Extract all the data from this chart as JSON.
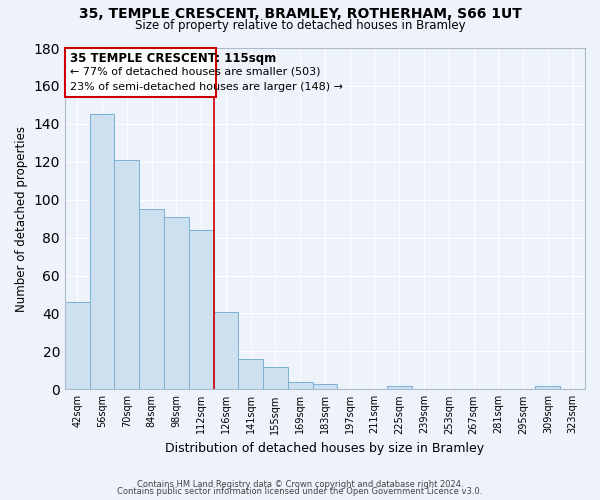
{
  "title1": "35, TEMPLE CRESCENT, BRAMLEY, ROTHERHAM, S66 1UT",
  "title2": "Size of property relative to detached houses in Bramley",
  "xlabel": "Distribution of detached houses by size in Bramley",
  "ylabel": "Number of detached properties",
  "bin_labels": [
    "42sqm",
    "56sqm",
    "70sqm",
    "84sqm",
    "98sqm",
    "112sqm",
    "126sqm",
    "141sqm",
    "155sqm",
    "169sqm",
    "183sqm",
    "197sqm",
    "211sqm",
    "225sqm",
    "239sqm",
    "253sqm",
    "267sqm",
    "281sqm",
    "295sqm",
    "309sqm",
    "323sqm"
  ],
  "bar_heights": [
    46,
    145,
    121,
    95,
    91,
    84,
    41,
    16,
    12,
    4,
    3,
    0,
    0,
    2,
    0,
    0,
    0,
    0,
    0,
    2,
    0
  ],
  "bar_color": "#cce0f0",
  "bar_edge_color": "#7ab0d4",
  "annotation_title": "35 TEMPLE CRESCENT: 115sqm",
  "annotation_line1": "← 77% of detached houses are smaller (503)",
  "annotation_line2": "23% of semi-detached houses are larger (148) →",
  "annotation_box_color": "#ffffff",
  "annotation_box_edge": "#cc0000",
  "vline_color": "#cc0000",
  "ylim": [
    0,
    180
  ],
  "yticks": [
    0,
    20,
    40,
    60,
    80,
    100,
    120,
    140,
    160,
    180
  ],
  "footer1": "Contains HM Land Registry data © Crown copyright and database right 2024.",
  "footer2": "Contains public sector information licensed under the Open Government Licence v3.0.",
  "background_color": "#eef2fb",
  "grid_color": "#ffffff",
  "title1_fontsize": 10,
  "title2_fontsize": 8.5,
  "ylabel_fontsize": 8.5,
  "xlabel_fontsize": 9,
  "tick_fontsize": 7,
  "footer_fontsize": 6,
  "ann_title_fontsize": 8.5,
  "ann_text_fontsize": 8
}
